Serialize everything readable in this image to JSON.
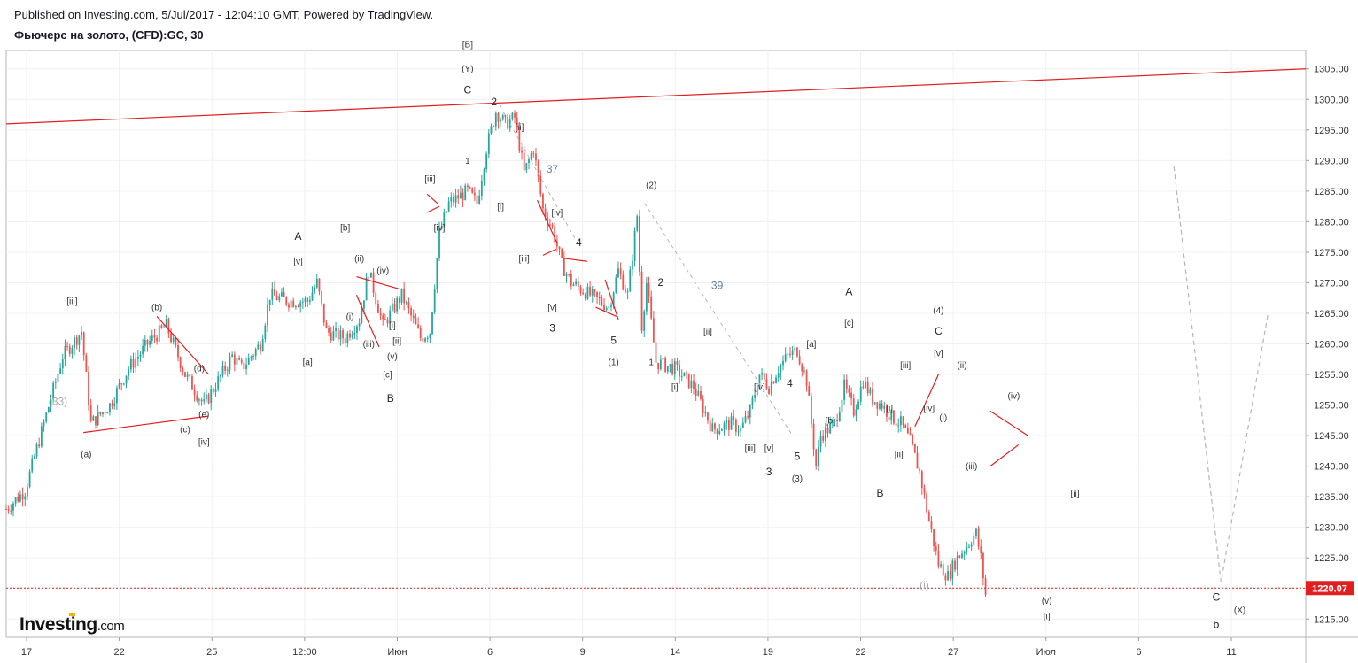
{
  "header": {
    "published": "Published on Investing.com, 5/Jul/2017 - 12:04:10 GMT, Powered by TradingView.",
    "instrument": "Фьючерс на золото, (CFD):GC, 30"
  },
  "logo": {
    "text": "Investing",
    "suffix": ".com"
  },
  "colors": {
    "up": "#26a69a",
    "down": "#ef5350",
    "trend": "#e02020",
    "price_line": "#e02020",
    "projection": "#b5b5b5"
  },
  "chart_data": {
    "type": "candlestick",
    "y_range": [
      1212,
      1308
    ],
    "y_ticks": [
      "1215.00",
      "1220.00",
      "1225.00",
      "1230.00",
      "1235.00",
      "1240.00",
      "1245.00",
      "1250.00",
      "1255.00",
      "1260.00",
      "1265.00",
      "1270.00",
      "1275.00",
      "1280.00",
      "1285.00",
      "1290.00",
      "1295.00",
      "1300.00",
      "1305.00"
    ],
    "x_ticks": [
      "17",
      "22",
      "25",
      "12:00",
      "Июн",
      "6",
      "9",
      "14",
      "19",
      "22",
      "27",
      "Июл",
      "6",
      "11"
    ],
    "last_price": "1220.07",
    "price_path": [
      [
        0,
        1233
      ],
      [
        2,
        1236
      ],
      [
        4,
        1247
      ],
      [
        6,
        1258
      ],
      [
        8,
        1262
      ],
      [
        9,
        1247
      ],
      [
        11,
        1250
      ],
      [
        13,
        1256
      ],
      [
        15,
        1260
      ],
      [
        17,
        1263
      ],
      [
        19,
        1255
      ],
      [
        21,
        1250
      ],
      [
        22.5,
        1254
      ],
      [
        24,
        1258
      ],
      [
        25,
        1256
      ],
      [
        27,
        1260
      ],
      [
        28,
        1268
      ],
      [
        30,
        1267
      ],
      [
        32,
        1267
      ],
      [
        33,
        1270
      ],
      [
        34,
        1262
      ],
      [
        36,
        1261
      ],
      [
        37.5,
        1264
      ],
      [
        38.5,
        1272
      ],
      [
        40,
        1263
      ],
      [
        42,
        1268
      ],
      [
        44,
        1261
      ],
      [
        45,
        1262
      ],
      [
        46,
        1278
      ],
      [
        47,
        1283
      ],
      [
        49,
        1285
      ],
      [
        50,
        1283
      ],
      [
        51,
        1292
      ],
      [
        52,
        1298
      ],
      [
        53,
        1296
      ],
      [
        54,
        1297
      ],
      [
        55,
        1288
      ],
      [
        56,
        1292
      ],
      [
        57,
        1282
      ],
      [
        58,
        1279
      ],
      [
        59,
        1273
      ],
      [
        60,
        1270
      ],
      [
        62,
        1268
      ],
      [
        64,
        1266
      ],
      [
        65,
        1272
      ],
      [
        66,
        1268
      ],
      [
        67,
        1281
      ],
      [
        67.5,
        1263
      ],
      [
        68,
        1270
      ],
      [
        69,
        1257
      ],
      [
        71,
        1256
      ],
      [
        73,
        1253
      ],
      [
        75,
        1246
      ],
      [
        77,
        1247
      ],
      [
        78,
        1246
      ],
      [
        79,
        1249
      ],
      [
        80,
        1255
      ],
      [
        81,
        1253
      ],
      [
        82,
        1256
      ],
      [
        83,
        1258
      ],
      [
        84,
        1259
      ],
      [
        85,
        1254
      ],
      [
        86,
        1240
      ],
      [
        86.5,
        1245
      ],
      [
        88,
        1247
      ],
      [
        89,
        1253
      ],
      [
        90,
        1249
      ],
      [
        91,
        1254
      ],
      [
        92,
        1251
      ],
      [
        93,
        1250
      ],
      [
        94,
        1248
      ],
      [
        95,
        1247
      ],
      [
        96,
        1244
      ],
      [
        97,
        1239
      ],
      [
        98,
        1231
      ],
      [
        99,
        1224
      ],
      [
        100,
        1222
      ],
      [
        101,
        1225
      ],
      [
        102,
        1227
      ],
      [
        103,
        1229
      ],
      [
        103.5,
        1225
      ],
      [
        104,
        1219
      ]
    ],
    "x_range": [
      0,
      138
    ],
    "projection_path": [
      [
        124,
        1289
      ],
      [
        129,
        1221
      ],
      [
        134,
        1265
      ]
    ],
    "trend_line": [
      [
        0,
        1296
      ],
      [
        138,
        1305
      ]
    ],
    "wave_labels": [
      {
        "t": "[iii]",
        "x": 7,
        "y": 1266.5,
        "c": "wave"
      },
      {
        "t": "(33)",
        "x": 5.5,
        "y": 1250,
        "c": "wave-gray"
      },
      {
        "t": "(a)",
        "x": 8.5,
        "y": 1241.5,
        "c": "wave"
      },
      {
        "t": "(b)",
        "x": 16,
        "y": 1265.5,
        "c": "wave"
      },
      {
        "t": "(c)",
        "x": 19,
        "y": 1245.5,
        "c": "wave"
      },
      {
        "t": "(d)",
        "x": 20.5,
        "y": 1255.5,
        "c": "wave"
      },
      {
        "t": "(e)",
        "x": 21,
        "y": 1248,
        "c": "wave"
      },
      {
        "t": "[iv]",
        "x": 21,
        "y": 1243.5,
        "c": "wave"
      },
      {
        "t": "A",
        "x": 31,
        "y": 1277,
        "c": "wave-big"
      },
      {
        "t": "[v]",
        "x": 31,
        "y": 1273,
        "c": "wave"
      },
      {
        "t": "[a]",
        "x": 32,
        "y": 1256.5,
        "c": "wave"
      },
      {
        "t": "[b]",
        "x": 36,
        "y": 1278.5,
        "c": "wave"
      },
      {
        "t": "(ii)",
        "x": 37.5,
        "y": 1273.5,
        "c": "wave"
      },
      {
        "t": "(iv)",
        "x": 40,
        "y": 1271.5,
        "c": "wave"
      },
      {
        "t": "(i)",
        "x": 36.5,
        "y": 1264,
        "c": "wave"
      },
      {
        "t": "(iii)",
        "x": 38.5,
        "y": 1259.5,
        "c": "wave"
      },
      {
        "t": "(v)",
        "x": 41,
        "y": 1257.5,
        "c": "wave"
      },
      {
        "t": "[i]",
        "x": 41,
        "y": 1262.5,
        "c": "wave"
      },
      {
        "t": "[ii]",
        "x": 41.5,
        "y": 1260,
        "c": "wave"
      },
      {
        "t": "[c]",
        "x": 40.5,
        "y": 1254.5,
        "c": "wave"
      },
      {
        "t": "B",
        "x": 40.8,
        "y": 1250.5,
        "c": "wave-big"
      },
      {
        "t": "[iii]",
        "x": 45,
        "y": 1286.5,
        "c": "wave"
      },
      {
        "t": "[iv]",
        "x": 46,
        "y": 1278.5,
        "c": "wave"
      },
      {
        "t": "[B]",
        "x": 49,
        "y": 1308.5,
        "c": "wave"
      },
      {
        "t": "(Y)",
        "x": 49,
        "y": 1304.5,
        "c": "wave"
      },
      {
        "t": "C",
        "x": 49,
        "y": 1301,
        "c": "wave-big"
      },
      {
        "t": "2",
        "x": 51.8,
        "y": 1299,
        "c": "wave-big"
      },
      {
        "t": "1",
        "x": 49,
        "y": 1289.5,
        "c": "wave"
      },
      {
        "t": "[ii]",
        "x": 54.5,
        "y": 1295,
        "c": "wave"
      },
      {
        "t": "[i]",
        "x": 52.5,
        "y": 1282,
        "c": "wave"
      },
      {
        "t": "37",
        "x": 58,
        "y": 1288,
        "c": "wave-blue"
      },
      {
        "t": "[iv]",
        "x": 58.5,
        "y": 1281,
        "c": "wave"
      },
      {
        "t": "4",
        "x": 60.8,
        "y": 1276,
        "c": "wave-big"
      },
      {
        "t": "[iii]",
        "x": 55,
        "y": 1273.5,
        "c": "wave"
      },
      {
        "t": "[v]",
        "x": 58,
        "y": 1265.5,
        "c": "wave"
      },
      {
        "t": "3",
        "x": 58,
        "y": 1262,
        "c": "wave-big"
      },
      {
        "t": "5",
        "x": 64.5,
        "y": 1260,
        "c": "wave-big"
      },
      {
        "t": "(1)",
        "x": 64.5,
        "y": 1256.5,
        "c": "wave"
      },
      {
        "t": "(2)",
        "x": 68.5,
        "y": 1285.5,
        "c": "wave"
      },
      {
        "t": "2",
        "x": 69.5,
        "y": 1269.5,
        "c": "wave-big"
      },
      {
        "t": "1",
        "x": 68.5,
        "y": 1256.5,
        "c": "wave"
      },
      {
        "t": "39",
        "x": 75.5,
        "y": 1269,
        "c": "wave-blue"
      },
      {
        "t": "[ii]",
        "x": 74.5,
        "y": 1261.5,
        "c": "wave"
      },
      {
        "t": "[i]",
        "x": 71,
        "y": 1252.5,
        "c": "wave"
      },
      {
        "t": "[iv]",
        "x": 80,
        "y": 1252.5,
        "c": "wave"
      },
      {
        "t": "4",
        "x": 83.2,
        "y": 1253,
        "c": "wave-big"
      },
      {
        "t": "[iii]",
        "x": 79,
        "y": 1242.5,
        "c": "wave"
      },
      {
        "t": "[v]",
        "x": 81,
        "y": 1242.5,
        "c": "wave"
      },
      {
        "t": "3",
        "x": 81,
        "y": 1238.5,
        "c": "wave-big"
      },
      {
        "t": "5",
        "x": 84,
        "y": 1241,
        "c": "wave-big"
      },
      {
        "t": "(3)",
        "x": 84,
        "y": 1237.5,
        "c": "wave"
      },
      {
        "t": "[a]",
        "x": 85.5,
        "y": 1259.5,
        "c": "wave"
      },
      {
        "t": "[b]",
        "x": 87.5,
        "y": 1247,
        "c": "wave"
      },
      {
        "t": "A",
        "x": 89.5,
        "y": 1268,
        "c": "wave-big"
      },
      {
        "t": "[c]",
        "x": 89.5,
        "y": 1263,
        "c": "wave"
      },
      {
        "t": "B",
        "x": 92.8,
        "y": 1235,
        "c": "wave-big"
      },
      {
        "t": "[iii]",
        "x": 95.5,
        "y": 1256,
        "c": "wave"
      },
      {
        "t": "[i]",
        "x": 93.8,
        "y": 1249,
        "c": "wave"
      },
      {
        "t": "[ii]",
        "x": 94.8,
        "y": 1241.5,
        "c": "wave"
      },
      {
        "t": "[iv]",
        "x": 98,
        "y": 1249,
        "c": "wave"
      },
      {
        "t": "(i)",
        "x": 99.5,
        "y": 1247.5,
        "c": "wave"
      },
      {
        "t": "(4)",
        "x": 99,
        "y": 1265,
        "c": "wave"
      },
      {
        "t": "C",
        "x": 99,
        "y": 1261.5,
        "c": "wave-big"
      },
      {
        "t": "[v]",
        "x": 99,
        "y": 1258,
        "c": "wave"
      },
      {
        "t": "(ii)",
        "x": 101.5,
        "y": 1256,
        "c": "wave"
      },
      {
        "t": "(iii)",
        "x": 102.5,
        "y": 1239.5,
        "c": "wave"
      },
      {
        "t": "(iv)",
        "x": 107,
        "y": 1251,
        "c": "wave"
      },
      {
        "t": "(i)",
        "x": 97.5,
        "y": 1220,
        "c": "wave-gray"
      },
      {
        "t": "[ii]",
        "x": 113.5,
        "y": 1235,
        "c": "wave"
      },
      {
        "t": "(v)",
        "x": 110.5,
        "y": 1217.5,
        "c": "wave"
      },
      {
        "t": "[i]",
        "x": 110.5,
        "y": 1215,
        "c": "wave"
      },
      {
        "t": "C",
        "x": 128.5,
        "y": 1218,
        "c": "wave-big"
      },
      {
        "t": "(X)",
        "x": 131,
        "y": 1216,
        "c": "wave"
      },
      {
        "t": "b",
        "x": 128.5,
        "y": 1213.5,
        "c": "wave-big"
      }
    ],
    "red_segments": [
      [
        [
          8.2,
          1245.5
        ],
        [
          21.5,
          1248.2
        ]
      ],
      [
        [
          16,
          1264.5
        ],
        [
          21.5,
          1255
        ]
      ],
      [
        [
          37.2,
          1271
        ],
        [
          41.7,
          1269
        ]
      ],
      [
        [
          37.2,
          1268
        ],
        [
          39.6,
          1259.5
        ]
      ],
      [
        [
          44.7,
          1281.5
        ],
        [
          46,
          1282.5
        ]
      ],
      [
        [
          44.7,
          1284.5
        ],
        [
          45.8,
          1283
        ]
      ],
      [
        [
          56.4,
          1283.5
        ],
        [
          58.5,
          1276.5
        ]
      ],
      [
        [
          57,
          1274.5
        ],
        [
          58.4,
          1275.5
        ]
      ],
      [
        [
          59.2,
          1274
        ],
        [
          61.7,
          1273.5
        ]
      ],
      [
        [
          62.6,
          1266
        ],
        [
          64.8,
          1264.5
        ]
      ],
      [
        [
          63.6,
          1270.5
        ],
        [
          65,
          1264
        ]
      ],
      [
        [
          104.5,
          1249
        ],
        [
          108.5,
          1245
        ]
      ],
      [
        [
          104.5,
          1240
        ],
        [
          107.5,
          1243.5
        ]
      ],
      [
        [
          96.5,
          1246.5
        ],
        [
          99,
          1255
        ]
      ]
    ]
  }
}
